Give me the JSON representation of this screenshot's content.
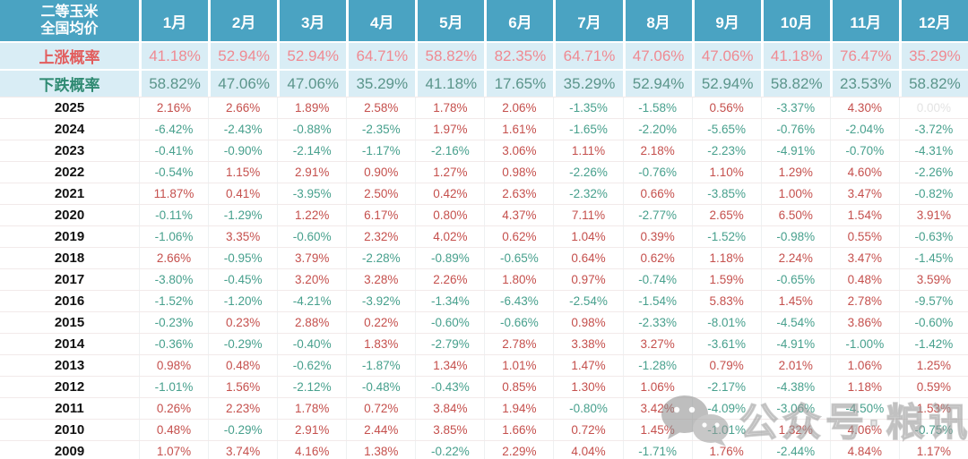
{
  "colors": {
    "header_bg": "#4aa3c2",
    "band_bg": "#d9edf5",
    "rise_label": "#e25d5d",
    "fall_label": "#2f8a72",
    "rise_val": "#ef8a92",
    "fall_val": "#5b958b",
    "positive": "#c5504d",
    "negative": "#47a08d",
    "zero": "#e3e3e3"
  },
  "watermark": {
    "text": "公众号·粮讯社",
    "icon": "wechat-icon"
  },
  "chart_data": {
    "type": "table",
    "title": "二等玉米 全国均价",
    "title_line1": "二等玉米",
    "title_line2": "全国均价",
    "columns": [
      "1月",
      "2月",
      "3月",
      "4月",
      "5月",
      "6月",
      "7月",
      "8月",
      "9月",
      "10月",
      "11月",
      "12月"
    ],
    "probability_rows": [
      {
        "kind": "rise",
        "label": "上涨概率",
        "values": [
          "41.18%",
          "52.94%",
          "52.94%",
          "64.71%",
          "58.82%",
          "82.35%",
          "64.71%",
          "47.06%",
          "47.06%",
          "41.18%",
          "76.47%",
          "35.29%"
        ]
      },
      {
        "kind": "fall",
        "label": "下跌概率",
        "values": [
          "58.82%",
          "47.06%",
          "47.06%",
          "35.29%",
          "41.18%",
          "17.65%",
          "35.29%",
          "52.94%",
          "52.94%",
          "58.82%",
          "23.53%",
          "58.82%"
        ]
      }
    ],
    "year_rows": [
      {
        "year": "2025",
        "values": [
          "2.16%",
          "2.66%",
          "1.89%",
          "2.58%",
          "1.78%",
          "2.06%",
          "-1.35%",
          "-1.58%",
          "0.56%",
          "-3.37%",
          "4.30%",
          "0.00%"
        ]
      },
      {
        "year": "2024",
        "values": [
          "-6.42%",
          "-2.43%",
          "-0.88%",
          "-2.35%",
          "1.97%",
          "1.61%",
          "-1.65%",
          "-2.20%",
          "-5.65%",
          "-0.76%",
          "-2.04%",
          "-3.72%"
        ]
      },
      {
        "year": "2023",
        "values": [
          "-0.41%",
          "-0.90%",
          "-2.14%",
          "-1.17%",
          "-2.16%",
          "3.06%",
          "1.11%",
          "2.18%",
          "-2.23%",
          "-4.91%",
          "-0.70%",
          "-4.31%"
        ]
      },
      {
        "year": "2022",
        "values": [
          "-0.54%",
          "1.15%",
          "2.91%",
          "0.90%",
          "1.27%",
          "0.98%",
          "-2.26%",
          "-0.76%",
          "1.10%",
          "1.29%",
          "4.60%",
          "-2.26%"
        ]
      },
      {
        "year": "2021",
        "values": [
          "11.87%",
          "0.41%",
          "-3.95%",
          "2.50%",
          "0.42%",
          "2.63%",
          "-2.32%",
          "0.66%",
          "-3.85%",
          "1.00%",
          "3.47%",
          "-0.82%"
        ]
      },
      {
        "year": "2020",
        "values": [
          "-0.11%",
          "-1.29%",
          "1.22%",
          "6.17%",
          "0.80%",
          "4.37%",
          "7.11%",
          "-2.77%",
          "2.65%",
          "6.50%",
          "1.54%",
          "3.91%"
        ]
      },
      {
        "year": "2019",
        "values": [
          "-1.06%",
          "3.35%",
          "-0.60%",
          "2.32%",
          "4.02%",
          "0.62%",
          "1.04%",
          "0.39%",
          "-1.52%",
          "-0.98%",
          "0.55%",
          "-0.63%"
        ]
      },
      {
        "year": "2018",
        "values": [
          "2.66%",
          "-0.95%",
          "3.79%",
          "-2.28%",
          "-0.89%",
          "-0.65%",
          "0.64%",
          "0.62%",
          "1.18%",
          "2.24%",
          "3.47%",
          "-1.45%"
        ]
      },
      {
        "year": "2017",
        "values": [
          "-3.80%",
          "-0.45%",
          "3.20%",
          "3.28%",
          "2.26%",
          "1.80%",
          "0.97%",
          "-0.74%",
          "1.59%",
          "-0.65%",
          "0.48%",
          "3.59%"
        ]
      },
      {
        "year": "2016",
        "values": [
          "-1.52%",
          "-1.20%",
          "-4.21%",
          "-3.92%",
          "-1.34%",
          "-6.43%",
          "-2.54%",
          "-1.54%",
          "5.83%",
          "1.45%",
          "2.78%",
          "-9.57%"
        ]
      },
      {
        "year": "2015",
        "values": [
          "-0.23%",
          "0.23%",
          "2.88%",
          "0.22%",
          "-0.60%",
          "-0.66%",
          "0.98%",
          "-2.33%",
          "-8.01%",
          "-4.54%",
          "3.86%",
          "-0.60%"
        ]
      },
      {
        "year": "2014",
        "values": [
          "-0.36%",
          "-0.29%",
          "-0.40%",
          "1.83%",
          "-2.79%",
          "2.78%",
          "3.38%",
          "3.27%",
          "-3.61%",
          "-4.91%",
          "-1.00%",
          "-1.42%"
        ]
      },
      {
        "year": "2013",
        "values": [
          "0.98%",
          "0.48%",
          "-0.62%",
          "-1.87%",
          "1.34%",
          "1.01%",
          "1.47%",
          "-1.28%",
          "0.79%",
          "2.01%",
          "1.06%",
          "1.25%"
        ]
      },
      {
        "year": "2012",
        "values": [
          "-1.01%",
          "1.56%",
          "-2.12%",
          "-0.48%",
          "-0.43%",
          "0.85%",
          "1.30%",
          "1.06%",
          "-2.17%",
          "-4.38%",
          "1.18%",
          "0.59%"
        ]
      },
      {
        "year": "2011",
        "values": [
          "0.26%",
          "2.23%",
          "1.78%",
          "0.72%",
          "3.84%",
          "1.94%",
          "-0.80%",
          "3.42%",
          "-4.09%",
          "-3.06%",
          "-4.50%",
          "1.53%"
        ]
      },
      {
        "year": "2010",
        "values": [
          "0.48%",
          "-0.29%",
          "2.91%",
          "2.44%",
          "3.85%",
          "1.66%",
          "0.72%",
          "1.45%",
          "-1.01%",
          "1.32%",
          "4.06%",
          "-0.75%"
        ]
      },
      {
        "year": "2009",
        "values": [
          "1.07%",
          "3.74%",
          "4.16%",
          "1.38%",
          "-0.22%",
          "2.29%",
          "4.04%",
          "-1.71%",
          "1.76%",
          "-2.44%",
          "4.84%",
          "1.17%"
        ]
      }
    ]
  }
}
